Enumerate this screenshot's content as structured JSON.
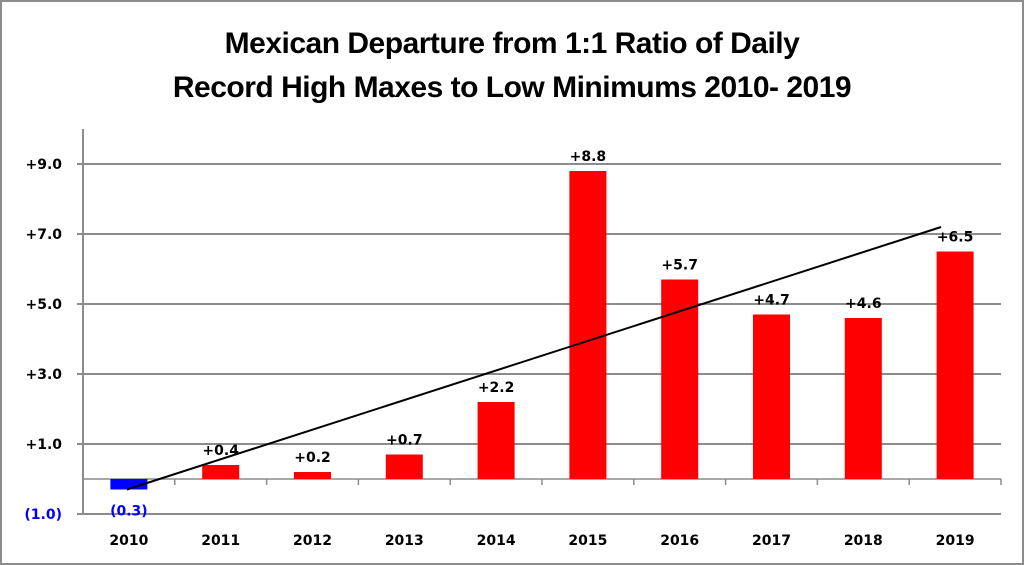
{
  "chart_data": {
    "type": "bar",
    "title_lines": [
      "Mexican Departure from 1:1 Ratio of Daily",
      "Record High Maxes to Low Minimums 2010- 2019"
    ],
    "xlabel": "",
    "ylabel": "",
    "categories": [
      "2010",
      "2011",
      "2012",
      "2013",
      "2014",
      "2015",
      "2016",
      "2017",
      "2018",
      "2019"
    ],
    "values": [
      -0.3,
      0.4,
      0.2,
      0.7,
      2.2,
      8.8,
      5.7,
      4.7,
      4.6,
      6.5
    ],
    "data_labels": [
      "(0.3)",
      "+0.4",
      "+0.2",
      "+0.7",
      "+2.2",
      "+8.8",
      "+5.7",
      "+4.7",
      "+4.6",
      "+6.5"
    ],
    "ylim": [
      -1.0,
      10.0
    ],
    "yticks": [
      -1.0,
      1.0,
      3.0,
      5.0,
      7.0,
      9.0
    ],
    "ytick_labels": [
      "(1.0)",
      "+1.0",
      "+3.0",
      "+5.0",
      "+7.0",
      "+9.0"
    ],
    "grid": true,
    "legend": "none",
    "colors": {
      "positive_bar": "#ff0000",
      "negative_bar": "#0000ff",
      "negative_label": "#0000ff",
      "trendline": "#000000",
      "gridline": "#8c8c8c"
    },
    "trendline": {
      "type": "linear",
      "start": {
        "x": "2010",
        "y": -0.3
      },
      "end": {
        "x": "2019",
        "y": 7.2
      }
    }
  }
}
